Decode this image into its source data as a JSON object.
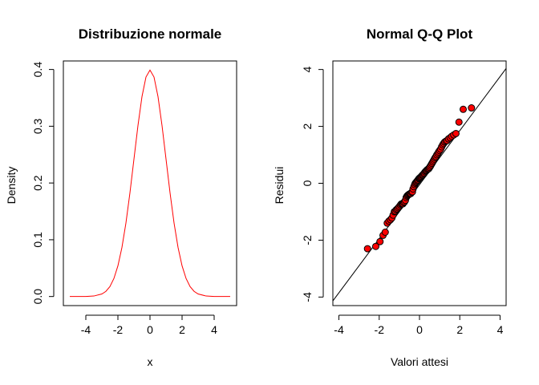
{
  "chart_data": [
    {
      "type": "line",
      "title": "Distribuzione normale",
      "xlabel": "x",
      "ylabel": "Density",
      "xlim": [
        -5.4,
        5.4
      ],
      "ylim": [
        -0.016,
        0.415
      ],
      "xticks": [
        -4,
        -2,
        0,
        2,
        4
      ],
      "yticks": [
        0.0,
        0.1,
        0.2,
        0.3,
        0.4
      ],
      "xtick_labels": [
        "-4",
        "-2",
        "0",
        "2",
        "4"
      ],
      "ytick_labels": [
        "0.0",
        "0.1",
        "0.2",
        "0.3",
        "0.4"
      ],
      "series": [
        {
          "color": "#ff0000",
          "x": [
            -5,
            -4.5,
            -4,
            -3.5,
            -3,
            -2.75,
            -2.5,
            -2.25,
            -2,
            -1.75,
            -1.5,
            -1.25,
            -1,
            -0.75,
            -0.5,
            -0.25,
            0,
            0.25,
            0.5,
            0.75,
            1,
            1.25,
            1.5,
            1.75,
            2,
            2.25,
            2.5,
            2.75,
            3,
            3.5,
            4,
            4.5,
            5
          ],
          "y": [
            1.5e-06,
            1.6e-05,
            0.000134,
            0.000873,
            0.00443,
            0.00909,
            0.0175,
            0.0317,
            0.054,
            0.0863,
            0.1295,
            0.1826,
            0.242,
            0.3011,
            0.3521,
            0.3867,
            0.3989,
            0.3867,
            0.3521,
            0.3011,
            0.242,
            0.1826,
            0.1295,
            0.0863,
            0.054,
            0.0317,
            0.0175,
            0.00909,
            0.00443,
            0.000873,
            0.000134,
            1.6e-05,
            1.5e-06
          ]
        }
      ],
      "grid": false,
      "legend": "none"
    },
    {
      "type": "scatter",
      "title": "Normal Q-Q Plot",
      "xlabel": "Valori attesi",
      "ylabel": "Residui",
      "xlim": [
        -4.3,
        4.3
      ],
      "ylim": [
        -4.3,
        4.3
      ],
      "xticks": [
        -4,
        -2,
        0,
        2,
        4
      ],
      "yticks": [
        -4,
        -2,
        0,
        2,
        4
      ],
      "xtick_labels": [
        "-4",
        "-2",
        "0",
        "2",
        "4"
      ],
      "ytick_labels": [
        "-4",
        "-2",
        "0",
        "2",
        "4"
      ],
      "reference_line": {
        "slope": 0.95,
        "intercept": -0.05
      },
      "point_fill": "#ff0000",
      "point_edge": "#000000",
      "line_color": "#ff0000",
      "points": {
        "x": [
          -2.58,
          -2.17,
          -1.96,
          -1.81,
          -1.7,
          -1.6,
          -1.52,
          -1.44,
          -1.37,
          -1.31,
          -1.25,
          -1.2,
          -1.15,
          -1.1,
          -1.05,
          -1.0,
          -0.95,
          -0.91,
          -0.86,
          -0.82,
          -0.78,
          -0.74,
          -0.7,
          -0.66,
          -0.62,
          -0.58,
          -0.54,
          -0.5,
          -0.47,
          -0.43,
          -0.39,
          -0.35,
          -0.32,
          -0.28,
          -0.24,
          -0.21,
          -0.17,
          -0.14,
          -0.1,
          -0.07,
          -0.03,
          0.0,
          0.03,
          0.07,
          0.1,
          0.14,
          0.17,
          0.21,
          0.24,
          0.28,
          0.32,
          0.35,
          0.39,
          0.43,
          0.47,
          0.5,
          0.54,
          0.58,
          0.62,
          0.66,
          0.7,
          0.74,
          0.78,
          0.82,
          0.86,
          0.91,
          0.95,
          1.0,
          1.05,
          1.1,
          1.15,
          1.2,
          1.25,
          1.31,
          1.37,
          1.44,
          1.52,
          1.6,
          1.7,
          1.81,
          1.96,
          2.17,
          2.58
        ],
        "y": [
          -2.3,
          -2.22,
          -2.05,
          -1.83,
          -1.72,
          -1.4,
          -1.33,
          -1.28,
          -1.22,
          -1.12,
          -1.0,
          -0.98,
          -0.93,
          -0.9,
          -0.86,
          -0.82,
          -0.77,
          -0.73,
          -0.72,
          -0.72,
          -0.68,
          -0.65,
          -0.6,
          -0.5,
          -0.45,
          -0.42,
          -0.4,
          -0.38,
          -0.37,
          -0.36,
          -0.32,
          -0.3,
          -0.2,
          -0.12,
          -0.05,
          0.0,
          0.03,
          0.06,
          0.09,
          0.12,
          0.16,
          0.18,
          0.2,
          0.22,
          0.25,
          0.28,
          0.3,
          0.33,
          0.36,
          0.4,
          0.43,
          0.45,
          0.48,
          0.5,
          0.52,
          0.56,
          0.6,
          0.65,
          0.7,
          0.75,
          0.8,
          0.85,
          0.9,
          0.94,
          1.0,
          1.05,
          1.1,
          1.15,
          1.2,
          1.28,
          1.35,
          1.4,
          1.45,
          1.48,
          1.5,
          1.56,
          1.6,
          1.65,
          1.7,
          1.75,
          2.15,
          2.6,
          2.65
        ]
      },
      "grid": false,
      "legend": "none"
    }
  ]
}
